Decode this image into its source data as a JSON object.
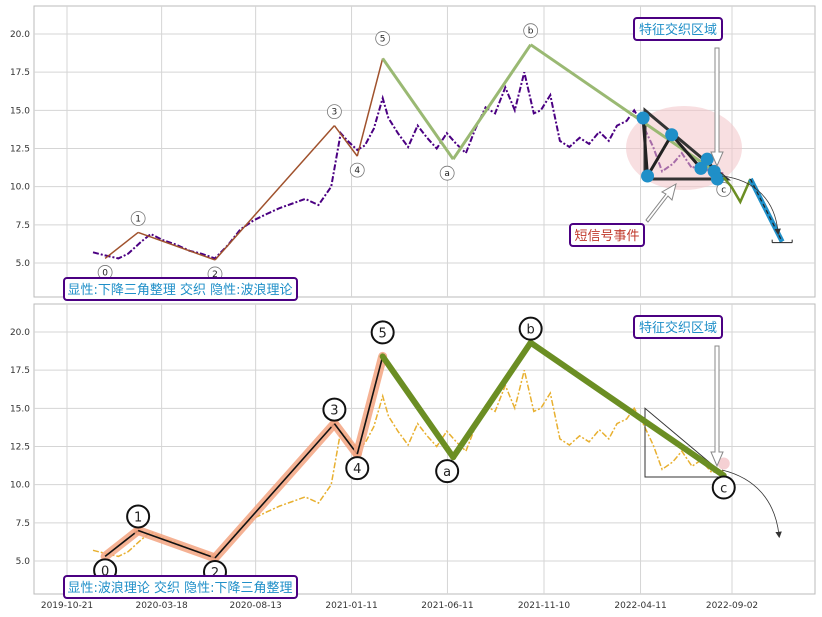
{
  "chart_data": [
    {
      "type": "line",
      "panel": "top",
      "ylim": [
        3,
        22
      ],
      "yticks": [
        "5.0",
        "7.5",
        "10.0",
        "12.5",
        "15.0",
        "17.5",
        "20.0"
      ],
      "grid": true,
      "series": [
        {
          "style": "dash-dot",
          "color": "#4b0082",
          "x": [
            "2019-12-01",
            "2019-12-20",
            "2020-01-10",
            "2020-01-25",
            "2020-02-15",
            "2020-03-01",
            "2020-03-20",
            "2020-04-10",
            "2020-05-01",
            "2020-05-20",
            "2020-06-10",
            "2020-07-01",
            "2020-07-20",
            "2020-08-10",
            "2020-08-30",
            "2020-09-20",
            "2020-10-10",
            "2020-10-30",
            "2020-11-20",
            "2020-12-10",
            "2020-12-25",
            "2021-01-05",
            "2021-01-20",
            "2021-02-01",
            "2021-02-15",
            "2021-03-01",
            "2021-03-10",
            "2021-03-25",
            "2021-04-10",
            "2021-04-25",
            "2021-05-10",
            "2021-05-25",
            "2021-06-10",
            "2021-06-25",
            "2021-07-10",
            "2021-07-25",
            "2021-08-10",
            "2021-08-25",
            "2021-09-10",
            "2021-09-25",
            "2021-10-10",
            "2021-10-25",
            "2021-11-05",
            "2021-11-20",
            "2021-12-05",
            "2021-12-20",
            "2022-01-05",
            "2022-01-20",
            "2022-02-05",
            "2022-02-20",
            "2022-03-05",
            "2022-03-20",
            "2022-04-01",
            "2022-04-15",
            "2022-05-01",
            "2022-05-15",
            "2022-06-01",
            "2022-06-15",
            "2022-07-01",
            "2022-07-15",
            "2022-08-01",
            "2022-08-20"
          ],
          "values": [
            5.7,
            5.5,
            5.3,
            5.6,
            6.4,
            6.9,
            6.5,
            6.2,
            5.8,
            5.6,
            5.3,
            6.2,
            7.2,
            7.8,
            8.2,
            8.6,
            8.9,
            9.2,
            8.8,
            10.0,
            13.5,
            13.0,
            12.4,
            12.7,
            13.8,
            15.8,
            14.5,
            13.5,
            12.6,
            14.0,
            13.2,
            12.5,
            13.5,
            12.8,
            12.2,
            13.8,
            15.2,
            14.8,
            16.5,
            15.0,
            17.5,
            14.8,
            15.0,
            16.0,
            13.0,
            12.6,
            13.2,
            12.8,
            13.6,
            13.0,
            14.0,
            14.3,
            15.0,
            14.0,
            12.6,
            11.0,
            11.5,
            12.2,
            11.2,
            11.6,
            10.8,
            10.9
          ]
        }
      ],
      "wave_points": [
        {
          "label": "0",
          "x": "2019-12-20",
          "y": 5.3
        },
        {
          "label": "1",
          "x": "2020-02-10",
          "y": 7.0
        },
        {
          "label": "2",
          "x": "2020-06-10",
          "y": 5.2
        },
        {
          "label": "3",
          "x": "2020-12-15",
          "y": 14.0
        },
        {
          "label": "4",
          "x": "2021-01-20",
          "y": 12.0
        },
        {
          "label": "5",
          "x": "2021-03-01",
          "y": 18.4
        },
        {
          "label": "a",
          "x": "2021-06-20",
          "y": 11.8
        },
        {
          "label": "b",
          "x": "2021-10-20",
          "y": 19.3
        },
        {
          "label": "c",
          "x": "2022-08-20",
          "y": 10.6
        }
      ],
      "projection": [
        {
          "x": "2022-08-20",
          "y": 10.6
        },
        {
          "x": "2022-09-01",
          "y": 10.0
        },
        {
          "x": "2022-09-15",
          "y": 9.0
        },
        {
          "x": "2022-10-01",
          "y": 10.5
        },
        {
          "x": "2022-11-20",
          "y": 6.4
        }
      ],
      "triangle": [
        {
          "x": "2022-04-18",
          "y": 15.0
        },
        {
          "x": "2022-04-18",
          "y": 10.5
        },
        {
          "x": "2022-08-25",
          "y": 10.5
        }
      ],
      "pattern_markers": [
        {
          "x": "2022-04-15",
          "y": 14.5
        },
        {
          "x": "2022-04-22",
          "y": 10.7
        },
        {
          "x": "2022-05-30",
          "y": 13.4
        },
        {
          "x": "2022-07-15",
          "y": 11.2
        },
        {
          "x": "2022-07-25",
          "y": 11.8
        },
        {
          "x": "2022-08-05",
          "y": 11.0
        },
        {
          "x": "2022-08-10",
          "y": 10.5
        }
      ],
      "annotations": {
        "feature_box": "特征交织区域",
        "short_signal": "短信号事件",
        "bottom_caption": "显性:下降三角整理 交织 隐性:波浪理论"
      }
    },
    {
      "type": "line",
      "panel": "bottom",
      "ylim": [
        3,
        22
      ],
      "yticks": [
        "5.0",
        "7.5",
        "10.0",
        "12.5",
        "15.0",
        "17.5",
        "20.0"
      ],
      "xticks": [
        "2019-10-21",
        "2020-03-18",
        "2020-08-13",
        "2021-01-11",
        "2021-06-11",
        "2021-11-10",
        "2022-04-11",
        "2022-09-02"
      ],
      "grid": true,
      "series": [
        {
          "style": "dash-dot",
          "color": "#e8b030",
          "x": [
            "2019-12-01",
            "2019-12-20",
            "2020-01-10",
            "2020-01-25",
            "2020-02-15",
            "2020-03-01",
            "2020-03-20",
            "2020-04-10",
            "2020-05-01",
            "2020-05-20",
            "2020-06-10",
            "2020-07-01",
            "2020-07-20",
            "2020-08-10",
            "2020-08-30",
            "2020-09-20",
            "2020-10-10",
            "2020-10-30",
            "2020-11-20",
            "2020-12-10",
            "2020-12-25",
            "2021-01-05",
            "2021-01-20",
            "2021-02-01",
            "2021-02-15",
            "2021-03-01",
            "2021-03-10",
            "2021-03-25",
            "2021-04-10",
            "2021-04-25",
            "2021-05-10",
            "2021-05-25",
            "2021-06-10",
            "2021-06-25",
            "2021-07-10",
            "2021-07-25",
            "2021-08-10",
            "2021-08-25",
            "2021-09-10",
            "2021-09-25",
            "2021-10-10",
            "2021-10-25",
            "2021-11-05",
            "2021-11-20",
            "2021-12-05",
            "2021-12-20",
            "2022-01-05",
            "2022-01-20",
            "2022-02-05",
            "2022-02-20",
            "2022-03-05",
            "2022-03-20",
            "2022-04-01",
            "2022-04-15",
            "2022-05-01",
            "2022-05-15",
            "2022-06-01",
            "2022-06-15",
            "2022-07-01",
            "2022-07-15",
            "2022-08-01",
            "2022-08-20"
          ],
          "values": [
            5.7,
            5.5,
            5.3,
            5.6,
            6.4,
            6.9,
            6.5,
            6.2,
            5.8,
            5.6,
            5.3,
            6.2,
            7.2,
            7.8,
            8.2,
            8.6,
            8.9,
            9.2,
            8.8,
            10.0,
            13.5,
            13.0,
            12.4,
            12.7,
            13.8,
            15.8,
            14.5,
            13.5,
            12.6,
            14.0,
            13.2,
            12.5,
            13.5,
            12.8,
            12.2,
            13.8,
            15.2,
            14.8,
            16.5,
            15.0,
            17.5,
            14.8,
            15.0,
            16.0,
            13.0,
            12.6,
            13.2,
            12.8,
            13.6,
            13.0,
            14.0,
            14.3,
            15.0,
            14.0,
            12.6,
            11.0,
            11.5,
            12.2,
            11.2,
            11.6,
            10.8,
            10.9
          ]
        }
      ],
      "wave_points": [
        {
          "label": "0",
          "x": "2019-12-20",
          "y": 5.3
        },
        {
          "label": "1",
          "x": "2020-02-10",
          "y": 7.0
        },
        {
          "label": "2",
          "x": "2020-06-10",
          "y": 5.2
        },
        {
          "label": "3",
          "x": "2020-12-15",
          "y": 14.0
        },
        {
          "label": "4",
          "x": "2021-01-20",
          "y": 12.0
        },
        {
          "label": "5",
          "x": "2021-03-01",
          "y": 18.4
        },
        {
          "label": "a",
          "x": "2021-06-20",
          "y": 11.8
        },
        {
          "label": "b",
          "x": "2021-10-20",
          "y": 19.3
        },
        {
          "label": "c",
          "x": "2022-08-20",
          "y": 10.6
        }
      ],
      "triangle": [
        {
          "x": "2022-04-18",
          "y": 15.0
        },
        {
          "x": "2022-04-18",
          "y": 10.5
        },
        {
          "x": "2022-08-25",
          "y": 10.5
        }
      ],
      "annotations": {
        "feature_box": "特征交织区域",
        "bottom_caption": "显性:波浪理论 交织 隐性:下降三角整理"
      }
    }
  ],
  "colors": {
    "impulse_top": "#a0522d",
    "corrective_top": "#9ab973",
    "impulse_bottom_glow": "#f4a582",
    "corrective_bottom": "#6b8e23",
    "box_border": "#4b0082",
    "marker": "#1f8fc8",
    "ellipse": "#f2c4c8"
  }
}
